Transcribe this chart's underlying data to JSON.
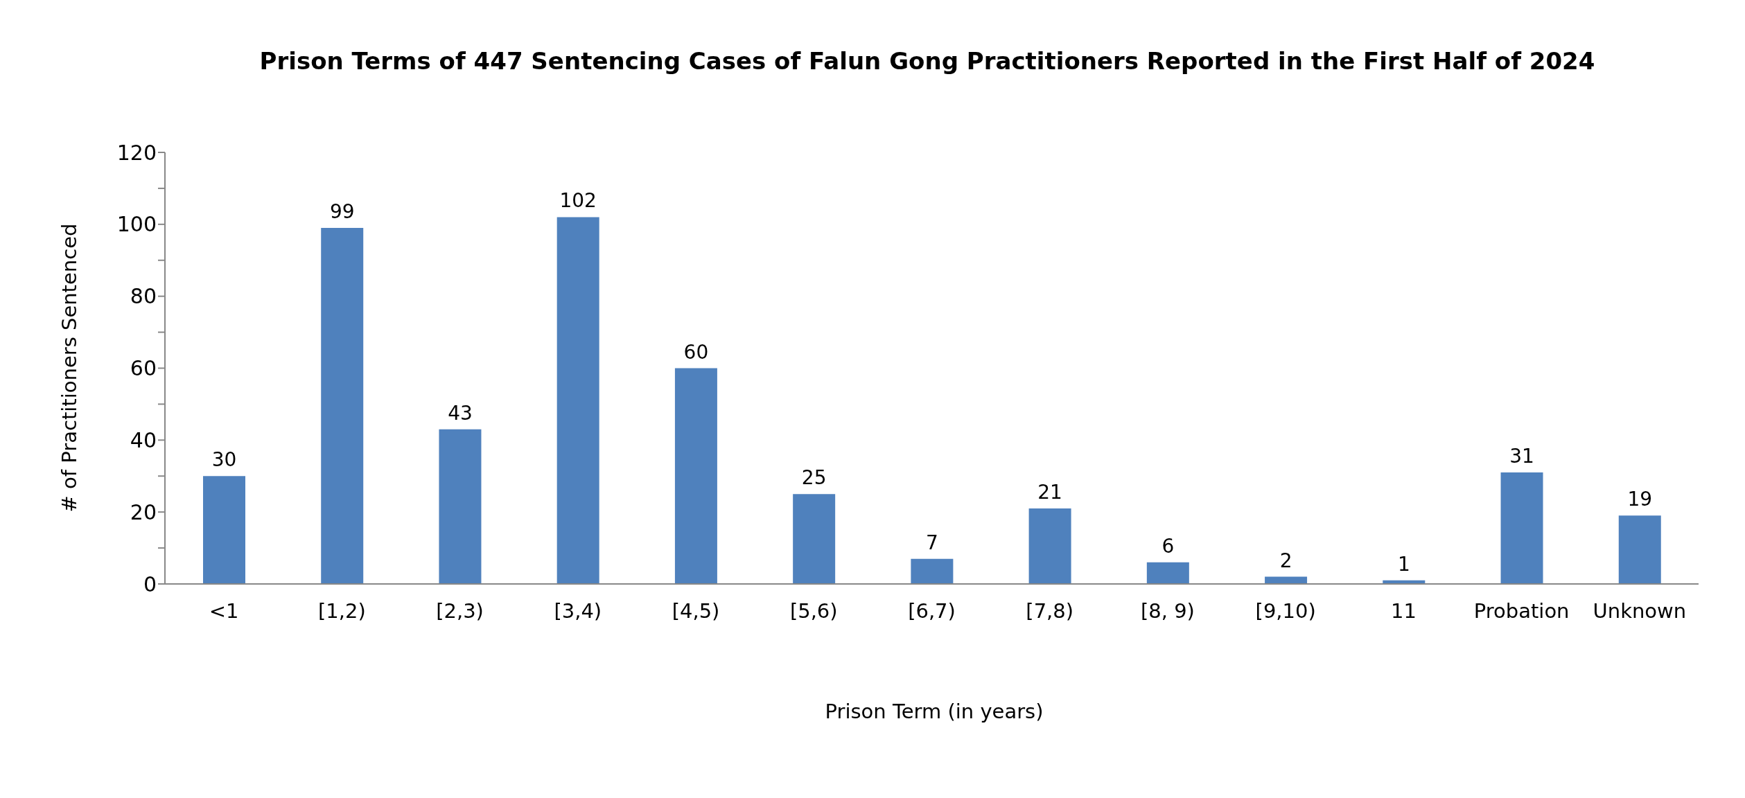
{
  "chart_data": {
    "type": "bar",
    "title": "Prison Terms of 447 Sentencing Cases of Falun Gong Practitioners Reported in the First Half of 2024",
    "xlabel": "Prison Term (in years)",
    "ylabel": "# of Practitioners Sentenced",
    "categories": [
      "<1",
      "[1,2)",
      "[2,3)",
      "[3,4)",
      "[4,5)",
      "[5,6)",
      "[6,7)",
      "[7,8)",
      "[8, 9)",
      "[9,10)",
      "11",
      "Probation",
      "Unknown"
    ],
    "values": [
      30,
      99,
      43,
      102,
      60,
      25,
      7,
      21,
      6,
      2,
      1,
      31,
      19
    ],
    "color": "#4f81bd",
    "ylim": [
      0,
      120
    ],
    "yticks": [
      0,
      {
        "value": 10,
        "label": null
      },
      20,
      {
        "value": 30,
        "label": null
      },
      40,
      {
        "value": 50,
        "label": null
      },
      60,
      {
        "value": 70,
        "label": null
      },
      80,
      {
        "value": 90,
        "label": null
      },
      100,
      {
        "value": 110,
        "label": null
      },
      120
    ],
    "data_labels": true,
    "grid": false
  }
}
